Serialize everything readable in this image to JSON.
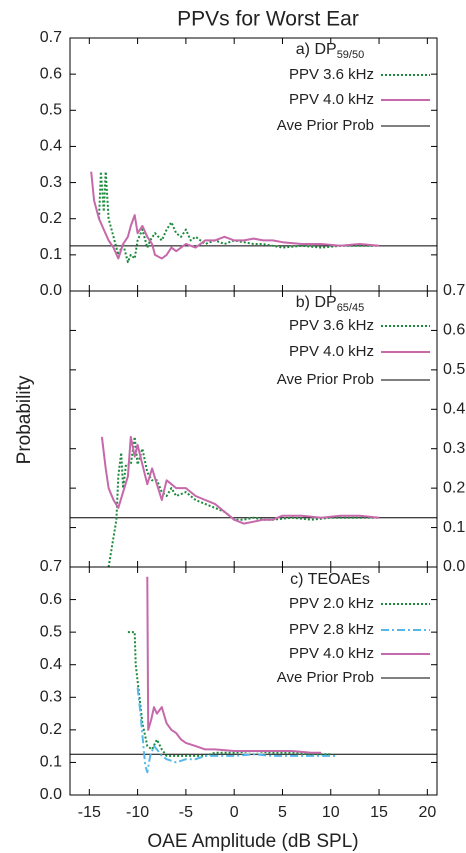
{
  "chart_data": [
    {
      "type": "line",
      "title": "PPVs for Worst Ear",
      "label": "a) DP",
      "label_sub": "59/50",
      "yaxis_side": "left",
      "xlim": [
        -17,
        21
      ],
      "xticks": [
        -15,
        -10,
        -5,
        0,
        5,
        10,
        15,
        20
      ],
      "ylim": [
        0,
        0.7
      ],
      "yticks": [
        {
          "value": 0,
          "label": "0.0"
        },
        0.1,
        0.2,
        0.3,
        0.4,
        0.5,
        0.6,
        0.7
      ],
      "series": [
        {
          "name": "PPV 3.6 kHz",
          "color": "#1b8a3c",
          "dash": "2,2",
          "x": [
            -14.0,
            -13.8,
            -13.5,
            -13.3,
            -13.0,
            -12.5,
            -12.0,
            -11.5,
            -11.0,
            -10.7,
            -10.3,
            -10.0,
            -9.5,
            -9.0,
            -8.7,
            -8.2,
            -7.5,
            -7.0,
            -6.5,
            -6.0,
            -5.5,
            -5.0,
            -4.5,
            -4.0,
            -3.0,
            -2.0,
            -1.0,
            0,
            1,
            2,
            3,
            4,
            5,
            7,
            9,
            11,
            13,
            15
          ],
          "values": [
            0.2,
            0.33,
            0.22,
            0.33,
            0.2,
            0.15,
            0.1,
            0.13,
            0.08,
            0.1,
            0.09,
            0.14,
            0.17,
            0.12,
            0.14,
            0.16,
            0.14,
            0.17,
            0.19,
            0.16,
            0.15,
            0.17,
            0.14,
            0.15,
            0.13,
            0.14,
            0.13,
            0.14,
            0.135,
            0.13,
            0.13,
            0.125,
            0.12,
            0.125,
            0.12,
            0.125,
            0.125,
            0.125
          ]
        },
        {
          "name": "PPV 4.0 kHz",
          "color": "#c668aa",
          "dash": "none",
          "x": [
            -14.8,
            -14.5,
            -14.0,
            -13.5,
            -13.0,
            -12.5,
            -12.0,
            -11.5,
            -11.0,
            -10.7,
            -10.3,
            -10.0,
            -9.5,
            -9.0,
            -8.5,
            -8.2,
            -7.5,
            -7.0,
            -6.5,
            -6.0,
            -5.0,
            -4.0,
            -3.0,
            -2.0,
            -1.0,
            0,
            1,
            2,
            3,
            4,
            5,
            7,
            9,
            11,
            13,
            15
          ],
          "values": [
            0.33,
            0.25,
            0.2,
            0.17,
            0.14,
            0.12,
            0.09,
            0.13,
            0.15,
            0.18,
            0.21,
            0.16,
            0.18,
            0.15,
            0.13,
            0.1,
            0.09,
            0.1,
            0.12,
            0.11,
            0.13,
            0.12,
            0.14,
            0.14,
            0.15,
            0.14,
            0.14,
            0.145,
            0.14,
            0.14,
            0.135,
            0.13,
            0.13,
            0.125,
            0.13,
            0.125
          ]
        }
      ],
      "hline": {
        "name": "Ave Prior Prob",
        "color": "#000000",
        "value": 0.125
      }
    },
    {
      "type": "line",
      "ylabel": "Probability",
      "label": "b) DP",
      "label_sub": "65/45",
      "yaxis_side": "right",
      "xlim": [
        -17,
        21
      ],
      "xticks": [
        -15,
        -10,
        -5,
        0,
        5,
        10,
        15,
        20
      ],
      "ylim": [
        0,
        0.7
      ],
      "yticks": [
        {
          "value": 0,
          "label": "0.0"
        },
        0.1,
        0.2,
        0.3,
        0.4,
        0.5,
        0.6,
        0.7
      ],
      "series": [
        {
          "name": "PPV 3.6 kHz",
          "color": "#1b8a3c",
          "dash": "2,2",
          "x": [
            -13.0,
            -12.2,
            -12.0,
            -11.7,
            -11.5,
            -11.2,
            -10.7,
            -10.3,
            -10.0,
            -9.5,
            -9.0,
            -8.5,
            -8.0,
            -7.5,
            -7.0,
            -6.5,
            -6.0,
            -5.0,
            -4.0,
            -3.0,
            -2.0,
            -1.0,
            0,
            1,
            2,
            3,
            4,
            6,
            8,
            10,
            12,
            15
          ],
          "values": [
            0.0,
            0.12,
            0.23,
            0.29,
            0.2,
            0.26,
            0.26,
            0.33,
            0.26,
            0.3,
            0.24,
            0.22,
            0.22,
            0.19,
            0.18,
            0.2,
            0.18,
            0.19,
            0.17,
            0.16,
            0.15,
            0.14,
            0.12,
            0.12,
            0.125,
            0.12,
            0.12,
            0.125,
            0.12,
            0.125,
            0.125,
            0.125
          ]
        },
        {
          "name": "PPV 4.0 kHz",
          "color": "#c668aa",
          "dash": "none",
          "x": [
            -13.7,
            -13.3,
            -13.0,
            -12.5,
            -12.0,
            -11.5,
            -11.0,
            -10.7,
            -10.3,
            -10.0,
            -9.5,
            -9.0,
            -8.5,
            -8.0,
            -7.5,
            -7.0,
            -6.5,
            -6.0,
            -5.0,
            -4.0,
            -3.0,
            -2.0,
            -1.0,
            0,
            1,
            2,
            3,
            4,
            5,
            7,
            9,
            11,
            13,
            15
          ],
          "values": [
            0.33,
            0.25,
            0.2,
            0.17,
            0.15,
            0.19,
            0.23,
            0.33,
            0.28,
            0.31,
            0.26,
            0.21,
            0.25,
            0.21,
            0.17,
            0.22,
            0.21,
            0.2,
            0.2,
            0.18,
            0.17,
            0.16,
            0.14,
            0.12,
            0.11,
            0.115,
            0.12,
            0.12,
            0.13,
            0.13,
            0.125,
            0.13,
            0.13,
            0.125
          ]
        }
      ],
      "hline": {
        "name": "Ave Prior Prob",
        "color": "#000000",
        "value": 0.125
      }
    },
    {
      "type": "line",
      "xlabel": "OAE Amplitude (dB SPL)",
      "label": "c) TEOAEs",
      "yaxis_side": "left",
      "xlim": [
        -17,
        21
      ],
      "xticks": [
        -15,
        -10,
        -5,
        0,
        5,
        10,
        15,
        20
      ],
      "ylim": [
        0,
        0.7
      ],
      "yticks": [
        {
          "value": 0,
          "label": "0.0"
        },
        0.1,
        0.2,
        0.3,
        0.4,
        0.5,
        0.6,
        0.7
      ],
      "series": [
        {
          "name": "PPV 2.0 kHz",
          "color": "#1b8a3c",
          "dash": "2,2",
          "x": [
            -11.0,
            -10.3,
            -10.2,
            -9.8,
            -9.5,
            -9.2,
            -9.0,
            -8.5,
            -8.0,
            -7.5,
            -7.0,
            -6.0,
            -5.0,
            -4.0,
            -3.0,
            -2.0,
            -1.0,
            0,
            2,
            4,
            6,
            8,
            10
          ],
          "values": [
            0.5,
            0.5,
            0.4,
            0.3,
            0.22,
            0.18,
            0.15,
            0.14,
            0.17,
            0.14,
            0.12,
            0.12,
            0.12,
            0.12,
            0.12,
            0.13,
            0.13,
            0.13,
            0.135,
            0.13,
            0.13,
            0.125,
            0.125
          ]
        },
        {
          "name": "PPV 2.8 kHz",
          "color": "#55b8e8",
          "dash": "8,3,2,3",
          "x": [
            -10.0,
            -9.7,
            -9.4,
            -9.2,
            -9.0,
            -8.7,
            -8.3,
            -8.0,
            -7.5,
            -7.0,
            -6.0,
            -5.0,
            -4.0,
            -3.0,
            -2.0,
            0,
            2,
            4,
            6,
            8,
            10.5
          ],
          "values": [
            0.33,
            0.25,
            0.15,
            0.09,
            0.07,
            0.12,
            0.15,
            0.14,
            0.12,
            0.11,
            0.1,
            0.11,
            0.11,
            0.12,
            0.12,
            0.12,
            0.125,
            0.12,
            0.12,
            0.12,
            0.12
          ]
        },
        {
          "name": "PPV 4.0 kHz",
          "color": "#c668aa",
          "dash": "none",
          "x": [
            -9.0,
            -8.9,
            -8.6,
            -8.3,
            -8.0,
            -7.5,
            -7.0,
            -6.5,
            -6.0,
            -5.5,
            -5.0,
            -4.0,
            -3.0,
            -2.0,
            0,
            2,
            4,
            6,
            8,
            9
          ],
          "values": [
            0.67,
            0.2,
            0.23,
            0.27,
            0.25,
            0.27,
            0.22,
            0.2,
            0.19,
            0.17,
            0.16,
            0.15,
            0.14,
            0.14,
            0.135,
            0.135,
            0.135,
            0.135,
            0.13,
            0.13
          ]
        }
      ],
      "hline": {
        "name": "Ave Prior Prob",
        "color": "#000000",
        "value": 0.125
      }
    }
  ]
}
